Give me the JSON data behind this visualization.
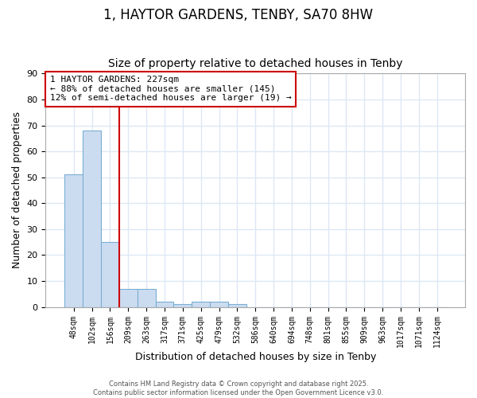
{
  "title1": "1, HAYTOR GARDENS, TENBY, SA70 8HW",
  "title2": "Size of property relative to detached houses in Tenby",
  "xlabel": "Distribution of detached houses by size in Tenby",
  "ylabel": "Number of detached properties",
  "bin_labels": [
    "48sqm",
    "102sqm",
    "156sqm",
    "209sqm",
    "263sqm",
    "317sqm",
    "371sqm",
    "425sqm",
    "479sqm",
    "532sqm",
    "586sqm",
    "640sqm",
    "694sqm",
    "748sqm",
    "801sqm",
    "855sqm",
    "909sqm",
    "963sqm",
    "1017sqm",
    "1071sqm",
    "1124sqm"
  ],
  "bar_heights": [
    51,
    68,
    25,
    7,
    7,
    2,
    1,
    2,
    2,
    1,
    0,
    0,
    0,
    0,
    0,
    0,
    0,
    0,
    0,
    0,
    0
  ],
  "bar_color": "#ccdcf0",
  "bar_edge_color": "#7aaed4",
  "red_line_bin": 3,
  "annotation_text": "1 HAYTOR GARDENS: 227sqm\n← 88% of detached houses are smaller (145)\n12% of semi-detached houses are larger (19) →",
  "annotation_box_color": "#ffffff",
  "annotation_box_edge_color": "#cc0000",
  "ylim": [
    0,
    90
  ],
  "yticks": [
    0,
    10,
    20,
    30,
    40,
    50,
    60,
    70,
    80,
    90
  ],
  "footer": "Contains HM Land Registry data © Crown copyright and database right 2025.\nContains public sector information licensed under the Open Government Licence v3.0.",
  "plot_bg_color": "#ffffff",
  "fig_bg_color": "#ffffff",
  "grid_color": "#dce8f5",
  "red_line_color": "#cc0000",
  "title1_fontsize": 12,
  "title2_fontsize": 10
}
